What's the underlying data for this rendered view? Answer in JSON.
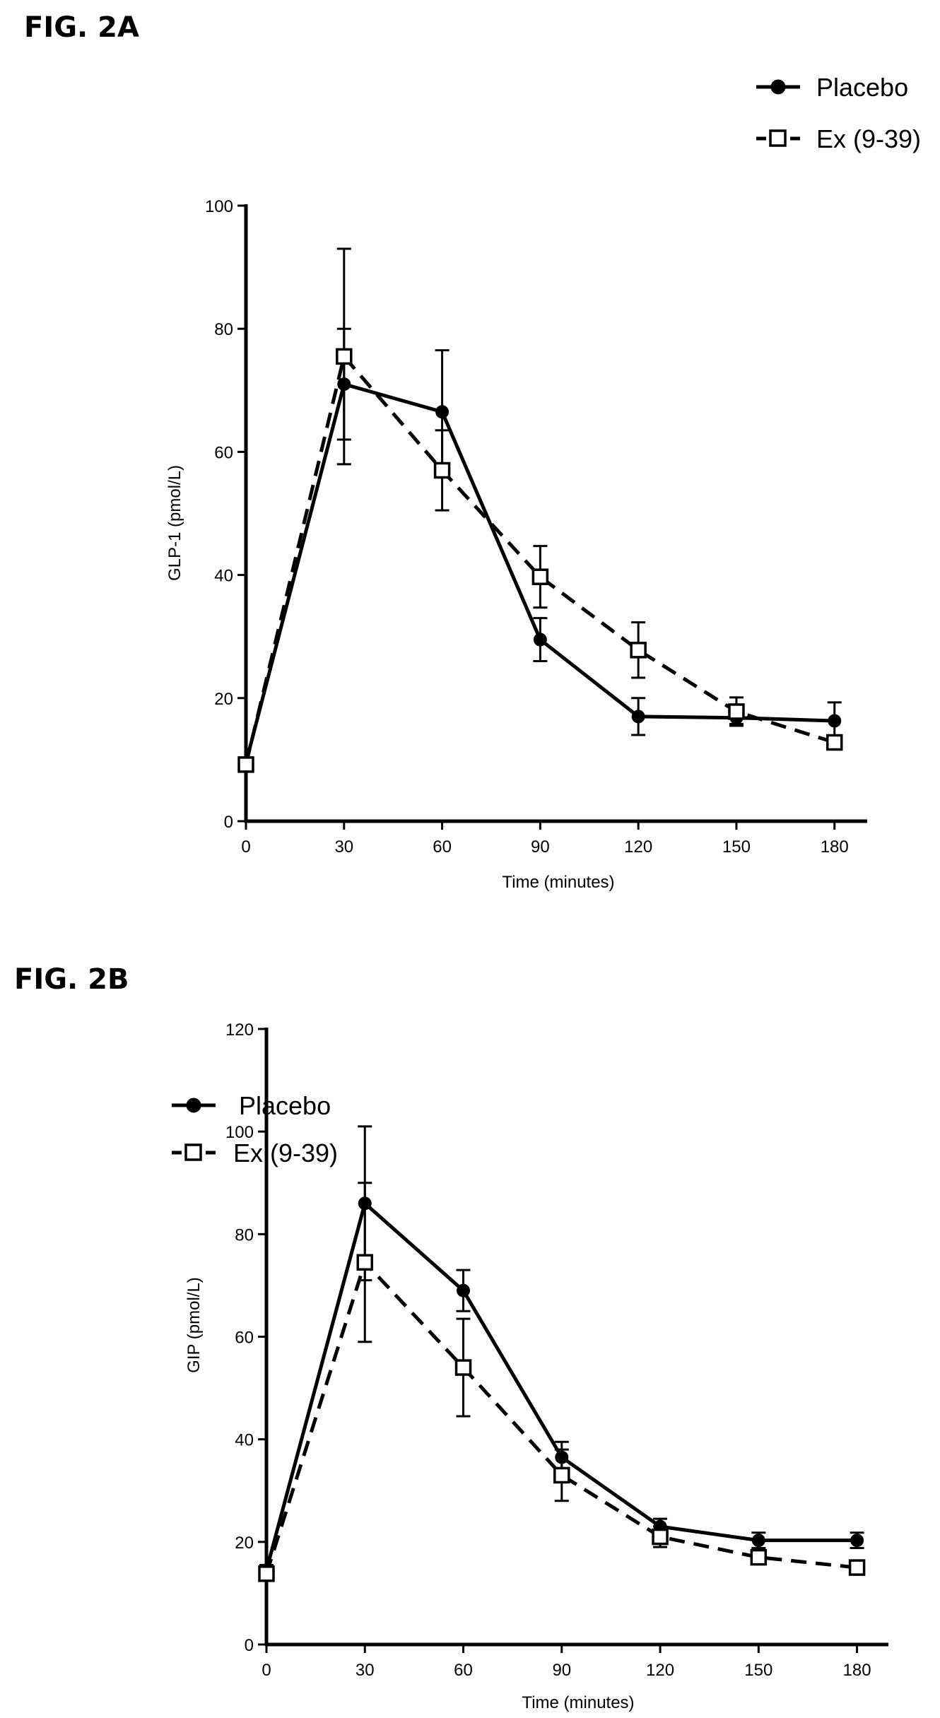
{
  "figure_a": {
    "label": "FIG. 2A"
  },
  "figure_b": {
    "label": "FIG. 2B"
  },
  "colors": {
    "lines": "#000000",
    "background": "#ffffff"
  },
  "chart_data": [
    {
      "type": "line",
      "title": "",
      "xlabel": "Time (minutes)",
      "ylabel": "GLP-1 (pmol/L)",
      "xlim": [
        0,
        190
      ],
      "ylim": [
        0,
        100
      ],
      "x_ticks": [
        0,
        30,
        60,
        90,
        120,
        150,
        180
      ],
      "y_ticks": [
        0,
        20,
        40,
        60,
        80,
        100
      ],
      "legend_position": "top-right",
      "grid": false,
      "x": [
        0,
        30,
        60,
        90,
        120,
        150,
        180
      ],
      "series": [
        {
          "name": "Placebo",
          "marker": "filled-circle",
          "line_style": "solid",
          "values": [
            9.5,
            71,
            66.5,
            29.5,
            17,
            16.8,
            16.3
          ],
          "errors": [
            0,
            9,
            10,
            3.5,
            3,
            1,
            3
          ]
        },
        {
          "name": "Ex (9-39)",
          "marker": "open-square",
          "line_style": "dashed",
          "values": [
            9.2,
            75.5,
            57,
            39.7,
            27.8,
            17.8,
            12.8
          ],
          "errors": [
            0,
            17.5,
            6.5,
            5,
            4.5,
            2.3,
            1
          ]
        }
      ]
    },
    {
      "type": "line",
      "title": "",
      "xlabel": "Time (minutes)",
      "ylabel": "GIP (pmol/L)",
      "xlim": [
        0,
        190
      ],
      "ylim": [
        0,
        120
      ],
      "x_ticks": [
        0,
        30,
        60,
        90,
        120,
        150,
        180
      ],
      "y_ticks": [
        0,
        20,
        40,
        60,
        80,
        100,
        120
      ],
      "legend_position": "top-left",
      "grid": false,
      "x": [
        0,
        30,
        60,
        90,
        120,
        150,
        180
      ],
      "series": [
        {
          "name": "Placebo",
          "marker": "filled-circle",
          "line_style": "solid",
          "values": [
            14.5,
            86,
            69,
            36.5,
            23,
            20.3,
            20.3
          ],
          "errors": [
            1,
            15,
            4,
            3,
            1.5,
            1.5,
            1.5
          ]
        },
        {
          "name": "Ex (9-39)",
          "marker": "open-square",
          "line_style": "dashed",
          "values": [
            13.8,
            74.5,
            54,
            33,
            21,
            17,
            15
          ],
          "errors": [
            0.5,
            15.5,
            9.5,
            5,
            2,
            0.5,
            0.5
          ]
        }
      ]
    }
  ]
}
